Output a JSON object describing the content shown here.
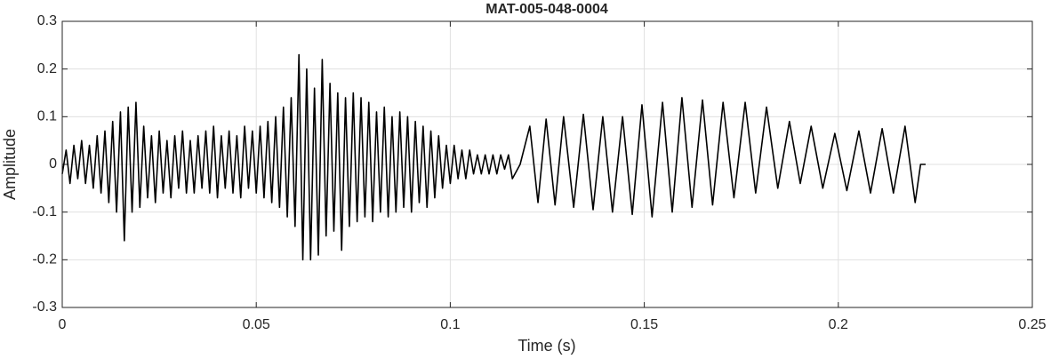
{
  "chart_data": {
    "type": "line",
    "title": "MAT-005-048-0004",
    "xlabel": "Time (s)",
    "ylabel": "Amplitude",
    "xlim": [
      0,
      0.25
    ],
    "xticks": [
      0,
      0.05,
      0.1,
      0.15,
      0.2,
      0.25
    ],
    "ylim": [
      -0.3,
      0.3
    ],
    "yticks": [
      -0.3,
      -0.2,
      -0.1,
      0,
      0.1,
      0.2,
      0.3
    ],
    "grid": true,
    "series": [
      {
        "color": "#000000",
        "x": [
          0.0,
          0.001,
          0.002,
          0.003,
          0.004,
          0.005,
          0.006,
          0.007,
          0.008,
          0.009,
          0.01,
          0.011,
          0.012,
          0.013,
          0.014,
          0.015,
          0.016,
          0.017,
          0.018,
          0.019,
          0.02,
          0.021,
          0.022,
          0.023,
          0.024,
          0.025,
          0.026,
          0.027,
          0.028,
          0.029,
          0.03,
          0.031,
          0.032,
          0.033,
          0.034,
          0.035,
          0.036,
          0.037,
          0.038,
          0.039,
          0.04,
          0.041,
          0.042,
          0.043,
          0.044,
          0.045,
          0.046,
          0.047,
          0.048,
          0.049,
          0.05,
          0.051,
          0.052,
          0.053,
          0.054,
          0.055,
          0.056,
          0.057,
          0.058,
          0.059,
          0.06,
          0.061,
          0.062,
          0.063,
          0.064,
          0.065,
          0.066,
          0.067,
          0.068,
          0.069,
          0.07,
          0.071,
          0.072,
          0.073,
          0.074,
          0.075,
          0.076,
          0.077,
          0.078,
          0.079,
          0.08,
          0.081,
          0.082,
          0.083,
          0.084,
          0.085,
          0.086,
          0.087,
          0.088,
          0.089,
          0.09,
          0.091,
          0.092,
          0.093,
          0.094,
          0.095,
          0.096,
          0.097,
          0.098,
          0.099,
          0.1,
          0.101,
          0.102,
          0.103,
          0.104,
          0.105,
          0.106,
          0.107,
          0.108,
          0.109,
          0.11,
          0.111,
          0.112,
          0.113,
          0.114,
          0.115,
          0.116,
          0.118,
          0.1205,
          0.1226,
          0.1247,
          0.127,
          0.1292,
          0.1318,
          0.1343,
          0.1368,
          0.1393,
          0.1418,
          0.1444,
          0.1469,
          0.1494,
          0.152,
          0.1547,
          0.1572,
          0.1597,
          0.1623,
          0.165,
          0.1676,
          0.1703,
          0.1731,
          0.176,
          0.1787,
          0.1815,
          0.1844,
          0.1874,
          0.1902,
          0.193,
          0.196,
          0.1991,
          0.2022,
          0.2053,
          0.2083,
          0.2113,
          0.2142,
          0.2172,
          0.2198,
          0.2212,
          0.2225
        ],
        "values": [
          -0.02,
          0.03,
          -0.04,
          0.04,
          -0.03,
          0.05,
          -0.04,
          0.04,
          -0.05,
          0.06,
          -0.06,
          0.07,
          -0.08,
          0.09,
          -0.1,
          0.11,
          -0.16,
          0.12,
          -0.1,
          0.13,
          -0.09,
          0.08,
          -0.07,
          0.06,
          -0.08,
          0.07,
          -0.06,
          0.05,
          -0.07,
          0.06,
          -0.05,
          0.07,
          -0.06,
          0.05,
          -0.06,
          0.06,
          -0.05,
          0.07,
          -0.06,
          0.08,
          -0.07,
          0.06,
          -0.05,
          0.07,
          -0.06,
          0.06,
          -0.07,
          0.08,
          -0.05,
          0.07,
          -0.06,
          0.08,
          -0.07,
          0.09,
          -0.08,
          0.1,
          -0.09,
          0.12,
          -0.11,
          0.14,
          -0.13,
          0.23,
          -0.2,
          0.2,
          -0.2,
          0.16,
          -0.19,
          0.22,
          -0.15,
          0.17,
          -0.14,
          0.15,
          -0.18,
          0.14,
          -0.13,
          0.15,
          -0.12,
          0.14,
          -0.11,
          0.13,
          -0.12,
          0.11,
          -0.1,
          0.12,
          -0.11,
          0.1,
          -0.1,
          0.11,
          -0.09,
          0.1,
          -0.1,
          0.09,
          -0.08,
          0.08,
          -0.09,
          0.07,
          -0.07,
          0.06,
          -0.05,
          0.04,
          -0.04,
          0.04,
          -0.03,
          0.03,
          -0.03,
          0.03,
          -0.02,
          0.02,
          -0.02,
          0.02,
          -0.02,
          0.02,
          -0.02,
          0.02,
          -0.01,
          0.02,
          -0.03,
          0,
          0.08,
          -0.08,
          0.095,
          -0.085,
          0.1,
          -0.09,
          0.105,
          -0.095,
          0.1,
          -0.1,
          0.1,
          -0.105,
          0.125,
          -0.11,
          0.13,
          -0.1,
          0.14,
          -0.09,
          0.135,
          -0.085,
          0.13,
          -0.07,
          0.13,
          -0.06,
          0.12,
          -0.05,
          0.09,
          -0.04,
          0.08,
          -0.05,
          0.065,
          -0.055,
          0.07,
          -0.06,
          0.075,
          -0.06,
          0.08,
          -0.08,
          0,
          0
        ]
      }
    ]
  }
}
